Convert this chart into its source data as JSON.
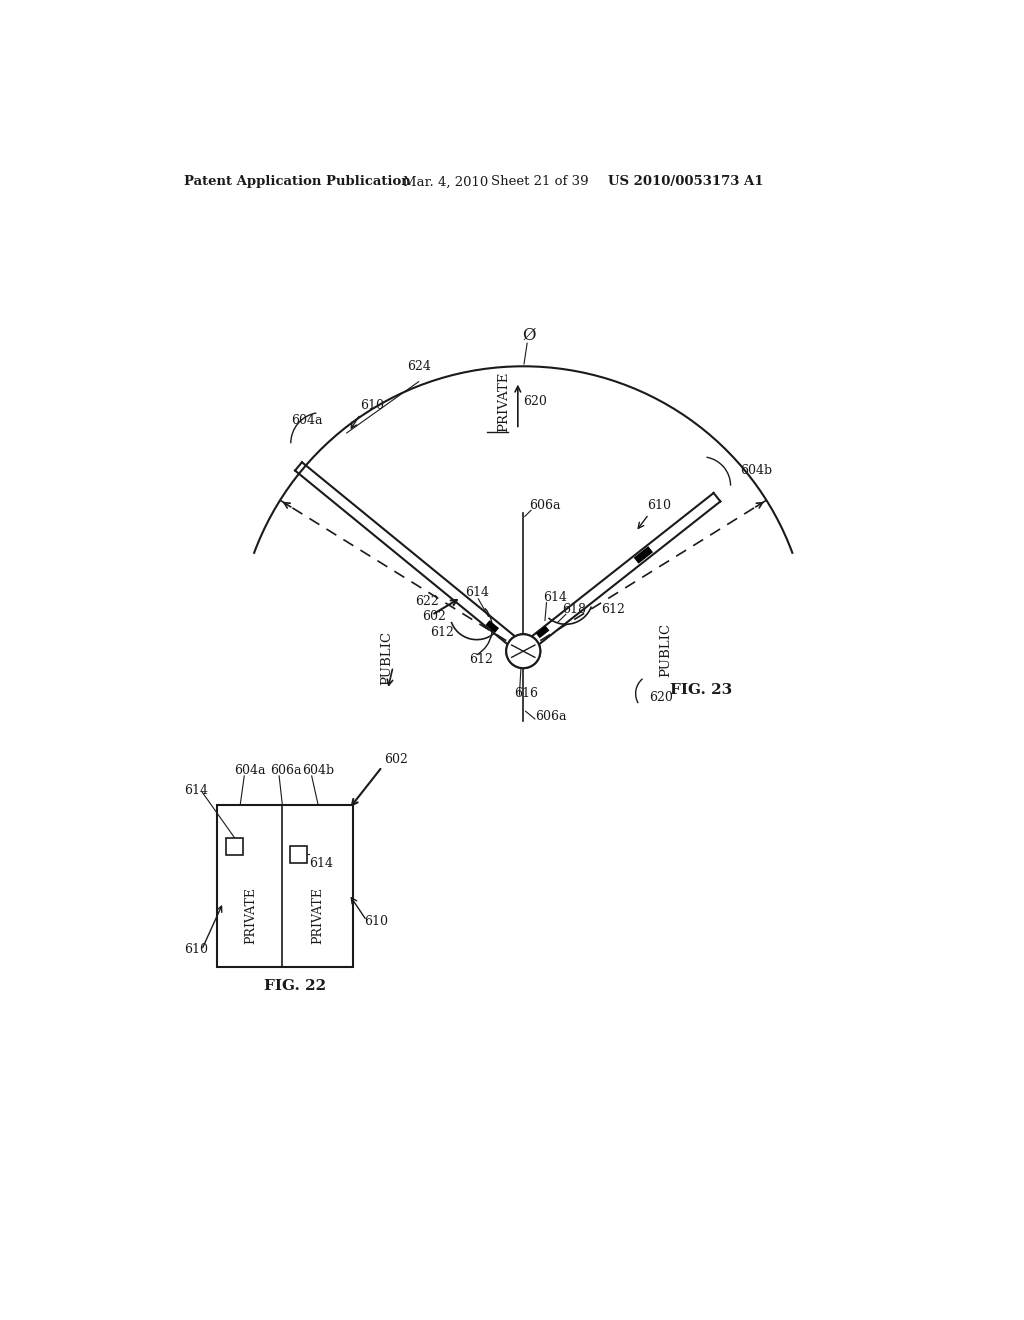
{
  "bg_color": "#ffffff",
  "header_text": "Patent Application Publication",
  "header_date": "Mar. 4, 2010",
  "header_sheet": "Sheet 21 of 39",
  "header_patent": "US 2010/0053173 A1",
  "fig22_label": "FIG. 22",
  "fig23_label": "FIG. 23",
  "line_color": "#1a1a1a",
  "text_color": "#1a1a1a"
}
